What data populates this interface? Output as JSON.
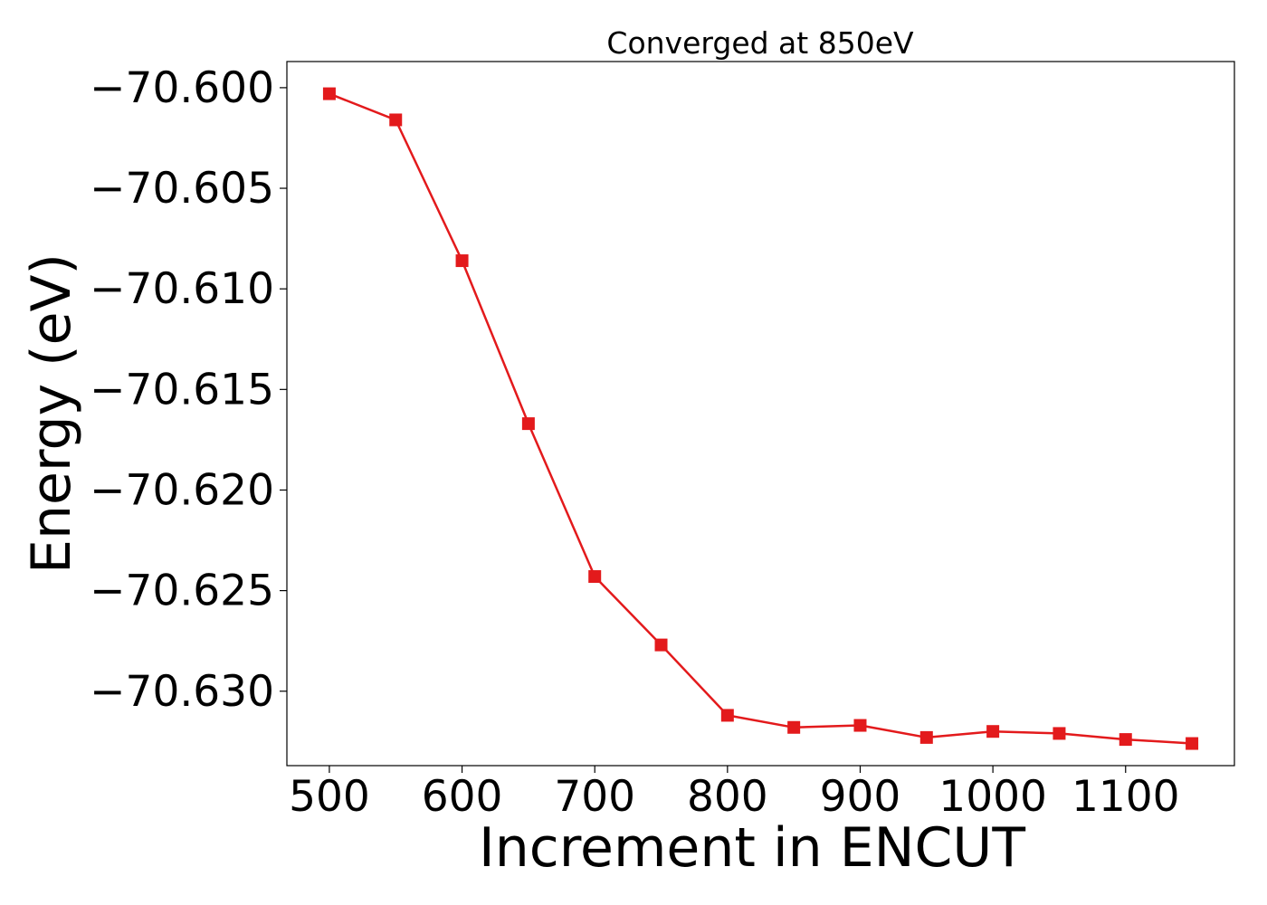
{
  "chart_data": {
    "type": "line",
    "title": "Converged at 850eV",
    "xlabel": "Increment in ENCUT",
    "ylabel": "Energy (eV)",
    "xlim": [
      468,
      1182
    ],
    "ylim": [
      -70.6337,
      -70.5987
    ],
    "xticks": [
      500,
      600,
      700,
      800,
      900,
      1000,
      1100
    ],
    "xtick_labels": [
      "500",
      "600",
      "700",
      "800",
      "900",
      "1000",
      "1100"
    ],
    "yticks": [
      -70.6,
      -70.605,
      -70.61,
      -70.615,
      -70.62,
      -70.625,
      -70.63
    ],
    "ytick_labels": [
      "−70.600",
      "−70.605",
      "−70.610",
      "−70.615",
      "−70.620",
      "−70.625",
      "−70.630"
    ],
    "grid": false,
    "legend": "none",
    "series": [
      {
        "color": "#e31a1c",
        "marker": "square",
        "x": [
          500,
          550,
          600,
          650,
          700,
          750,
          800,
          850,
          900,
          950,
          1000,
          1050,
          1100,
          1150
        ],
        "y": [
          -70.6003,
          -70.6016,
          -70.6086,
          -70.6167,
          -70.6243,
          -70.6277,
          -70.6312,
          -70.6318,
          -70.6317,
          -70.6323,
          -70.632,
          -70.6321,
          -70.6324,
          -70.6326
        ]
      }
    ]
  }
}
